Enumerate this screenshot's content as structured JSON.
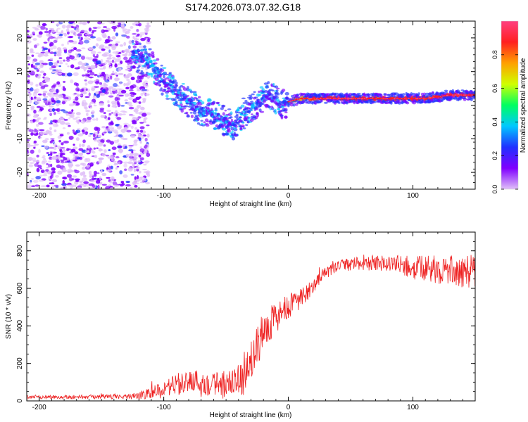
{
  "figure": {
    "title": "S174.2026.073.07.32.G18"
  },
  "chart_data": [
    {
      "type": "heatmap",
      "title": "",
      "xlabel": "Height of straight line (km)",
      "ylabel": "Frequency (Hz)",
      "xlim": [
        -210,
        150
      ],
      "ylim": [
        -25,
        25
      ],
      "xticks": [
        -200,
        -100,
        0,
        100
      ],
      "yticks": [
        -20,
        -10,
        0,
        10,
        20
      ],
      "xtick_labels": [
        "-200",
        "-100",
        "0",
        "100"
      ],
      "ytick_labels": [
        "-20",
        "-10",
        "0",
        "10",
        "20"
      ],
      "colorbar": {
        "label": "Normalized spectral amplitude",
        "range": [
          0,
          1
        ],
        "ticks": [
          0.0,
          0.2,
          0.4,
          0.6,
          0.8
        ],
        "tick_labels": [
          "0.0",
          "0.2",
          "0.4",
          "0.6",
          "0.8"
        ],
        "colors": [
          "#e0c0f8",
          "#8000ff",
          "#2030ff",
          "#00c8ff",
          "#00ff60",
          "#d0ff00",
          "#ffa000",
          "#ff2020",
          "#ff4080"
        ]
      },
      "ridge": {
        "description_values": "main frequency ridge (Hz) vs height (km)",
        "x": [
          -125,
          -110,
          -100,
          -90,
          -80,
          -70,
          -60,
          -50,
          -42,
          -35,
          -25,
          -15,
          -10,
          -5,
          0,
          10,
          30,
          60,
          90,
          110,
          130,
          150
        ],
        "y": [
          15,
          12,
          7,
          4,
          1,
          -2,
          -3,
          -5,
          -6,
          -2,
          0,
          3,
          1,
          0,
          1,
          2,
          2,
          2,
          2,
          2,
          3,
          3
        ]
      },
      "noise_region_km": [
        -210,
        -120
      ]
    },
    {
      "type": "line",
      "title": "",
      "xlabel": "Height of straight line (km)",
      "ylabel": "SNR (10 * v/v)",
      "xlim": [
        -210,
        150
      ],
      "ylim": [
        0,
        900
      ],
      "xticks": [
        -200,
        -100,
        0,
        100
      ],
      "yticks": [
        0,
        200,
        400,
        600,
        800
      ],
      "xtick_labels": [
        "-200",
        "-100",
        "0",
        "100"
      ],
      "ytick_labels": [
        "0",
        "200",
        "400",
        "600",
        "800"
      ],
      "series": [
        {
          "name": "SNR",
          "color": "#ee2222",
          "trend": {
            "x": [
              -210,
              -150,
              -120,
              -100,
              -80,
              -60,
              -45,
              -35,
              -25,
              -15,
              -5,
              5,
              15,
              25,
              40,
              60,
              80,
              100,
              120,
              140,
              150
            ],
            "y": [
              20,
              22,
              25,
              60,
              110,
              90,
              80,
              130,
              300,
              420,
              470,
              520,
              570,
              660,
              720,
              735,
              735,
              710,
              700,
              690,
              690
            ]
          },
          "noise_amplitude": {
            "x": [
              -210,
              -130,
              -115,
              -90,
              -60,
              -40,
              -20,
              0,
              20,
              40,
              80,
              110,
              150
            ],
            "y": [
              10,
              12,
              25,
              60,
              70,
              90,
              110,
              70,
              40,
              30,
              45,
              70,
              90
            ]
          }
        }
      ]
    }
  ]
}
